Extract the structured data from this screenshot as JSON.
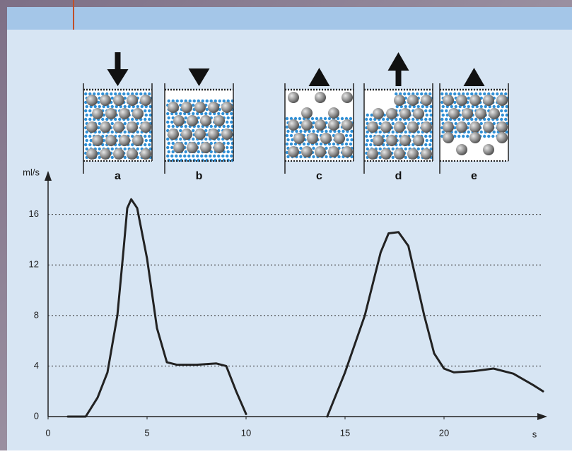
{
  "chart_data": {
    "type": "line",
    "x_label": "s",
    "y_label": "ml/s",
    "x": [
      1,
      1.9,
      2.5,
      3,
      3.5,
      3.8,
      4,
      4.2,
      4.5,
      5,
      5.5,
      6,
      6.5,
      7.5,
      8.5,
      9,
      9.5,
      10,
      12,
      14.1,
      15,
      16,
      16.8,
      17.2,
      17.7,
      18.2,
      19,
      19.5,
      20,
      20.5,
      21.5,
      22.5,
      23.5,
      24.5,
      25
    ],
    "values": [
      0,
      0,
      1.5,
      3.5,
      8,
      13,
      16.5,
      17.2,
      16.5,
      12.5,
      7,
      4.3,
      4.1,
      4.1,
      4.2,
      4,
      2,
      0.2,
      null,
      0,
      3.5,
      8,
      13,
      14.5,
      14.6,
      13.5,
      8,
      5,
      3.8,
      3.5,
      3.6,
      3.8,
      3.4,
      2.5,
      2
    ],
    "color": "#222222",
    "xlim": [
      0,
      25
    ],
    "xticks": [
      0,
      5,
      10,
      15,
      20
    ],
    "ylim": [
      0,
      19
    ],
    "yticks": [
      0,
      4,
      8,
      12,
      16
    ],
    "grid": true
  },
  "diagram": {
    "labels": [
      "a",
      "b",
      "c",
      "d",
      "e"
    ]
  }
}
